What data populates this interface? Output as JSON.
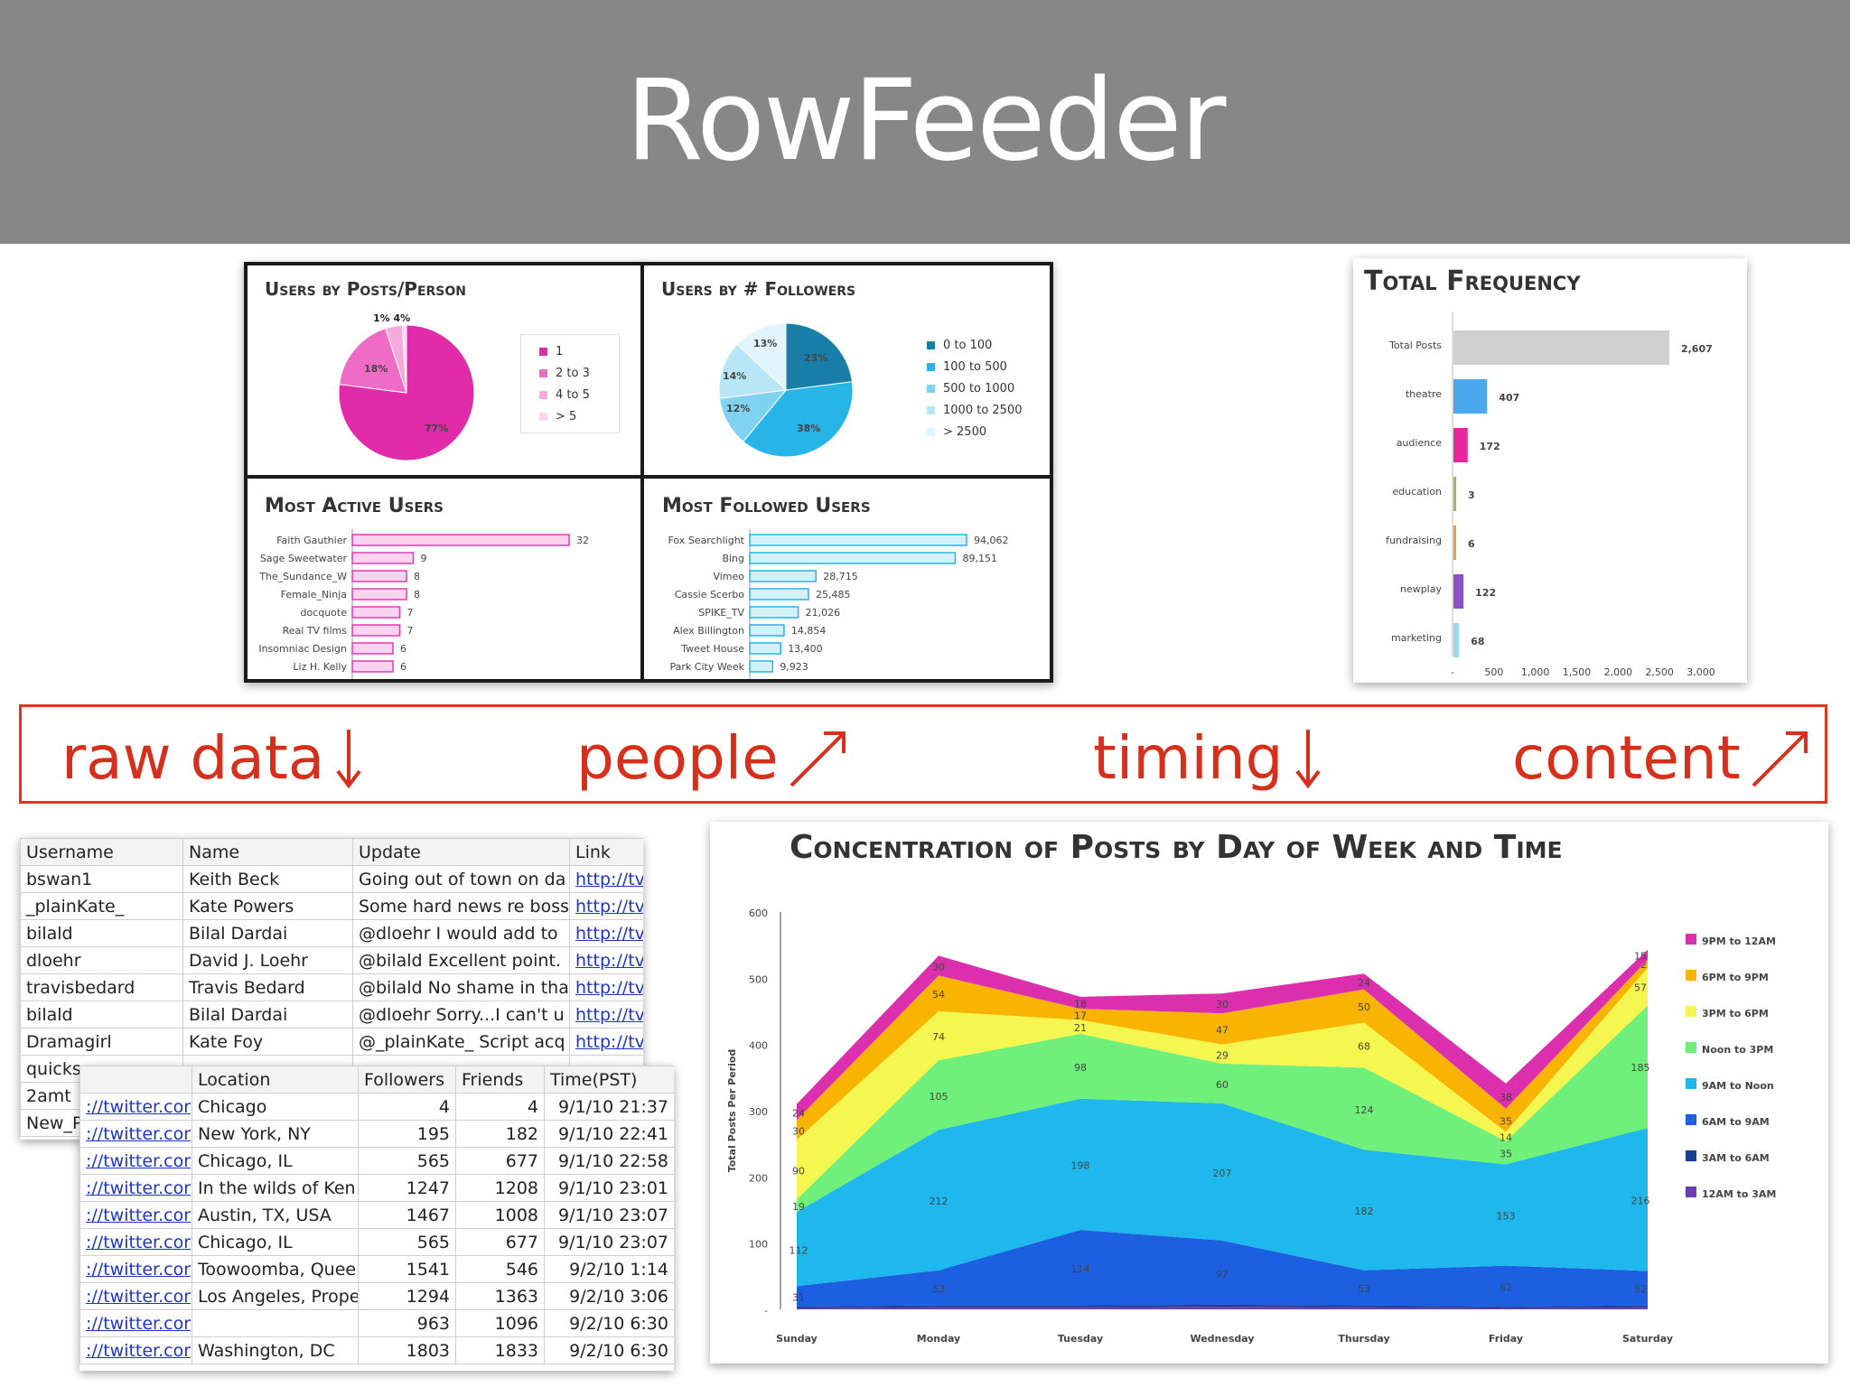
{
  "title": "RowFeeder",
  "colors": {
    "header_bg": "#878787",
    "banner_red": "#d6301c",
    "pink": "#e23ab1",
    "cyan": "#27b4e6"
  },
  "dashboard": {
    "users_by_posts": {
      "title": "Users by Posts/Person",
      "legend": [
        "1",
        "2 to 3",
        "4 to 5",
        "> 5"
      ],
      "labels": [
        "1%",
        "4%",
        "18%",
        "77%"
      ]
    },
    "users_by_followers": {
      "title": "Users by # Followers",
      "legend": [
        "0 to 100",
        "100 to 500",
        "500 to 1000",
        "1000 to 2500",
        "> 2500"
      ],
      "labels": [
        "23%",
        "38%",
        "12%",
        "14%",
        "13%"
      ]
    },
    "most_active": {
      "title": "Most Active Users",
      "names": [
        "Faith Gauthier",
        "Sage Sweetwater",
        "The_Sundance_W",
        "Female_Ninja",
        "docquote",
        "Real TV films",
        "Insomniac Design",
        "Liz H. Kelly"
      ],
      "values": [
        32,
        9,
        8,
        8,
        7,
        7,
        6,
        6
      ]
    },
    "most_followed": {
      "title": "Most Followed Users",
      "names": [
        "Fox Searchlight",
        "Bing",
        "Vimeo",
        "Cassie Scerbo",
        "SPIKE_TV",
        "Alex Billington",
        "Tweet House",
        "Park City Week"
      ],
      "values": [
        94062,
        89151,
        28715,
        25485,
        21026,
        14854,
        13400,
        9923
      ],
      "value_labels": [
        "94,062",
        "89,151",
        "28,715",
        "25,485",
        "21,026",
        "14,854",
        "13,400",
        "9,923"
      ]
    }
  },
  "total_frequency": {
    "title": "Total Frequency",
    "categories": [
      "Total Posts",
      "theatre",
      "audience",
      "education",
      "fundraising",
      "newplay",
      "marketing"
    ],
    "values": [
      2607,
      407,
      172,
      3,
      6,
      122,
      68
    ],
    "value_labels": [
      "2,607",
      "407",
      "172",
      "3",
      "6",
      "122",
      "68"
    ],
    "ticks": [
      "-",
      "500",
      "1,000",
      "1,500",
      "2,000",
      "2,500",
      "3,000"
    ]
  },
  "banner": {
    "items": [
      "raw data",
      "people",
      "timing",
      "content"
    ]
  },
  "sheet1": {
    "headers": [
      "Username",
      "Name",
      "Update",
      "Link"
    ],
    "rows": [
      [
        "bswan1",
        "Keith Beck",
        "Going out of town on da",
        "http://tv"
      ],
      [
        "_plainKate_",
        "Kate Powers",
        "Some hard news re boss",
        "http://tv"
      ],
      [
        "bilald",
        "Bilal Dardai",
        "@dloehr I would add to",
        "http://tv"
      ],
      [
        "dloehr",
        "David J. Loehr",
        "@bilald Excellent point.",
        "http://tv"
      ],
      [
        "travisbedard",
        "Travis Bedard",
        "@bilald No shame in tha",
        "http://tv"
      ],
      [
        "bilald",
        "Bilal Dardai",
        "@dloehr Sorry...I can't u",
        "http://tv"
      ],
      [
        "Dramagirl",
        "Kate Foy",
        "@_plainKate_ Script acq",
        "http://tv"
      ],
      [
        "quicks",
        "",
        "",
        ""
      ],
      [
        "2amt",
        "",
        "",
        ""
      ],
      [
        "New_P",
        "",
        "",
        ""
      ]
    ]
  },
  "sheet2": {
    "headers": [
      "",
      "Location",
      "Followers",
      "Friends",
      "Time(PST)"
    ],
    "rows": [
      [
        "://twitter.cor",
        "Chicago",
        "4",
        "4",
        "9/1/10 21:37"
      ],
      [
        "://twitter.cor",
        "New York, NY",
        "195",
        "182",
        "9/1/10 22:41"
      ],
      [
        "://twitter.cor",
        "Chicago, IL",
        "565",
        "677",
        "9/1/10 22:58"
      ],
      [
        "://twitter.cor",
        "In the wilds of Ken",
        "1247",
        "1208",
        "9/1/10 23:01"
      ],
      [
        "://twitter.cor",
        "Austin, TX, USA",
        "1467",
        "1008",
        "9/1/10 23:07"
      ],
      [
        "://twitter.cor",
        "Chicago, IL",
        "565",
        "677",
        "9/1/10 23:07"
      ],
      [
        "://twitter.cor",
        "Toowoomba, Quee",
        "1541",
        "546",
        "9/2/10 1:14"
      ],
      [
        "://twitter.cor",
        "Los Angeles, Prope",
        "1294",
        "1363",
        "9/2/10 3:06"
      ],
      [
        "://twitter.cor",
        "",
        "963",
        "1096",
        "9/2/10 6:30"
      ],
      [
        "://twitter.cor",
        "Washington, DC",
        "1803",
        "1833",
        "9/2/10 6:30"
      ]
    ]
  },
  "chart_data": [
    {
      "type": "pie",
      "title": "Users by Posts/Person",
      "categories": [
        "1",
        "2 to 3",
        "4 to 5",
        "> 5"
      ],
      "values": [
        77,
        18,
        4,
        1
      ],
      "colors": [
        "#e02ca8",
        "#ee6cc6",
        "#f6a9dd",
        "#fbd7ef"
      ]
    },
    {
      "type": "pie",
      "title": "Users by # Followers",
      "categories": [
        "0 to 100",
        "100 to 500",
        "500 to 1000",
        "1000 to 2500",
        "> 2500"
      ],
      "values": [
        23,
        38,
        12,
        14,
        13
      ],
      "colors": [
        "#1a7fa8",
        "#27b4e6",
        "#7fd3f1",
        "#b9e6f7",
        "#e1f5fc"
      ]
    },
    {
      "type": "area",
      "title": "Concentration of Posts by Day of Week and Time",
      "ylabel": "Total Posts Per Period",
      "x": [
        "Sunday",
        "Monday",
        "Tuesday",
        "Wednesday",
        "Thursday",
        "Friday",
        "Saturday"
      ],
      "ylim": [
        0,
        600
      ],
      "yticks": [
        "600",
        "500",
        "400",
        "300",
        "200",
        "100",
        "-"
      ],
      "legend_position": "right",
      "series": [
        {
          "name": "12AM to 3AM",
          "color": "#6a3fb5",
          "values": [
            2,
            3,
            3,
            4,
            3,
            2,
            3
          ]
        },
        {
          "name": "3AM to 6AM",
          "color": "#1a3f8f",
          "values": [
            2,
            3,
            3,
            3,
            3,
            2,
            3
          ]
        },
        {
          "name": "6AM to 9AM",
          "color": "#1c5fe0",
          "values": [
            31,
            53,
            114,
            97,
            53,
            62,
            52
          ]
        },
        {
          "name": "9AM to Noon",
          "color": "#1fb8ec",
          "values": [
            112,
            212,
            198,
            207,
            182,
            153,
            216
          ]
        },
        {
          "name": "Noon to 3PM",
          "color": "#6ff07a",
          "values": [
            19,
            105,
            98,
            60,
            124,
            35,
            185
          ]
        },
        {
          "name": "3PM to 6PM",
          "color": "#f6f650",
          "values": [
            90,
            74,
            21,
            29,
            68,
            14,
            57
          ]
        },
        {
          "name": "6PM to 9PM",
          "color": "#f8b400",
          "values": [
            30,
            54,
            17,
            47,
            50,
            35,
            12
          ]
        },
        {
          "name": "9PM to 12AM",
          "color": "#dc2fae",
          "values": [
            24,
            30,
            18,
            30,
            24,
            38,
            15
          ]
        }
      ]
    }
  ]
}
